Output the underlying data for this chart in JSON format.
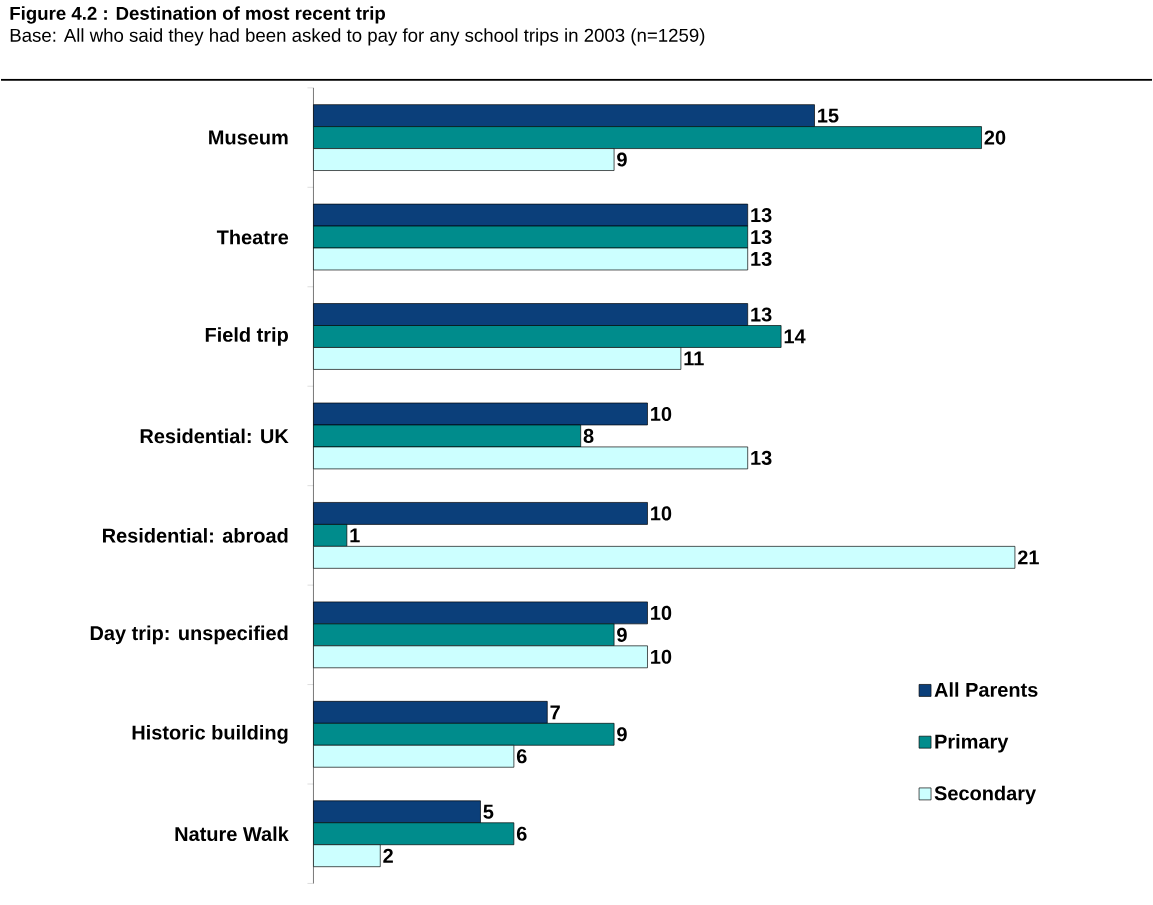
{
  "chart_data": {
    "type": "bar",
    "orientation": "horizontal",
    "title": "Figure 4.2 : Destination of most recent trip",
    "subtitle": "Base: All who said they had been asked to pay for any school trips in 2003 (n=1259)",
    "categories": [
      "Museum",
      "Theatre",
      "Field trip",
      "Residential: UK",
      "Residential: abroad",
      "Day trip: unspecified",
      "Historic building",
      "Nature Walk"
    ],
    "series": [
      {
        "name": "All Parents",
        "color": "#0b3f7a",
        "values": [
          15,
          13,
          13,
          10,
          10,
          10,
          7,
          5
        ]
      },
      {
        "name": "Primary",
        "color": "#008c8c",
        "values": [
          20,
          13,
          14,
          8,
          1,
          9,
          9,
          6
        ]
      },
      {
        "name": "Secondary",
        "color": "#ccffff",
        "values": [
          9,
          13,
          11,
          13,
          21,
          10,
          6,
          2
        ]
      }
    ],
    "data_labels": true,
    "legend": "right"
  }
}
